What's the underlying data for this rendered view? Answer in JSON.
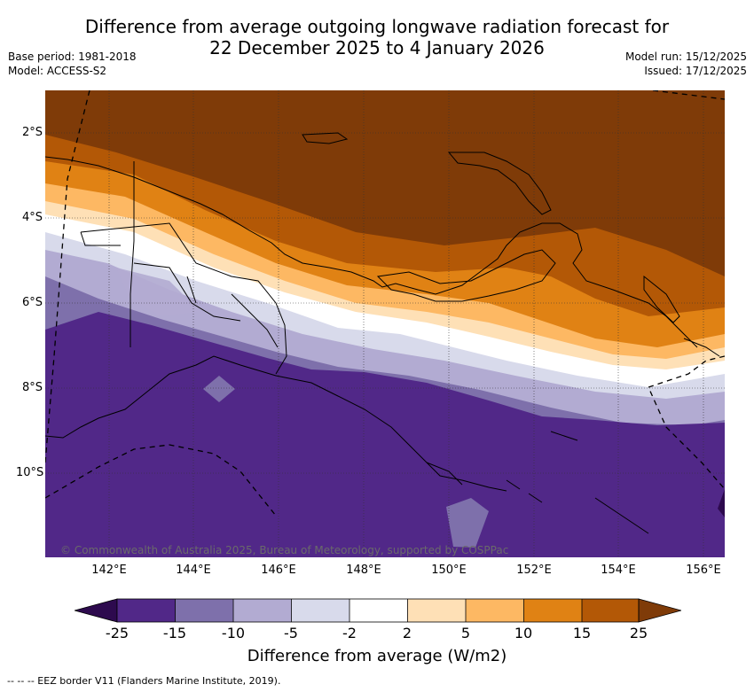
{
  "title": {
    "line1": "Difference from average outgoing longwave radiation forecast for",
    "line2": "22 December 2025 to 4 January 2026"
  },
  "meta": {
    "base_period": "Base period: 1981-2018",
    "model": "Model: ACCESS-S2",
    "model_run": "Model run: 15/12/2025",
    "issued": "Issued: 17/12/2025"
  },
  "map": {
    "longitude_labels": [
      "142°E",
      "144°E",
      "146°E",
      "148°E",
      "150°E",
      "152°E",
      "154°E",
      "156°E"
    ],
    "latitude_labels": [
      "2°S",
      "4°S",
      "6°S",
      "8°S",
      "10°S"
    ],
    "credit": "© Commonwealth of Australia 2025, Bureau of Meteorology, supported by COSPPac"
  },
  "colorbar": {
    "ticks": [
      "-25",
      "-15",
      "-10",
      "-5",
      "-2",
      "2",
      "5",
      "10",
      "15",
      "25"
    ],
    "title": "Difference from average (W/m2)",
    "colors": {
      "below_min": "#2d0a4e",
      "b_m25_m15": "#512888",
      "b_m15_m10": "#7e70ab",
      "b_m10_m5": "#b2abd2",
      "b_m5_m2": "#d8daeb",
      "b_m2_2": "#ffffff",
      "b_2_5": "#fee0b6",
      "b_5_10": "#fdb863",
      "b_10_15": "#e08214",
      "b_15_25": "#b35806",
      "above_max": "#7f3b08"
    }
  },
  "footnote": "--  --  -- EEZ border V11 (Flanders Marine Institute, 2019)."
}
